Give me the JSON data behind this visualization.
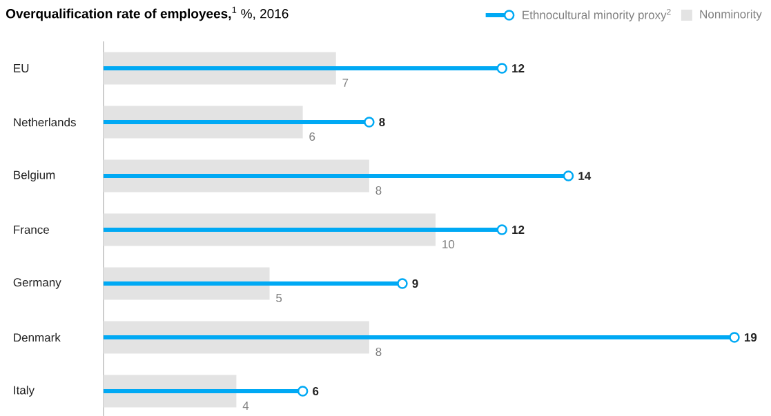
{
  "chart_data": {
    "type": "bar",
    "orientation": "horizontal",
    "title": "**Overqualification rate of employees,**$^{1}$ %, 2016",
    "categories": [
      "EU",
      "Netherlands",
      "Belgium",
      "France",
      "Germany",
      "Denmark",
      "Italy"
    ],
    "series": [
      {
        "name": "Ethnocultural minority proxy$^{2}$",
        "type": "lollipop",
        "color": "#00a9f4",
        "values": [
          12,
          8,
          14,
          12,
          9,
          19,
          6
        ]
      },
      {
        "name": "Nonminority",
        "color": "#e3e3e3",
        "values": [
          7,
          6,
          8,
          10,
          5,
          8,
          4
        ]
      }
    ],
    "marker": "circle",
    "data_labels": true,
    "legend": "top right"
  }
}
